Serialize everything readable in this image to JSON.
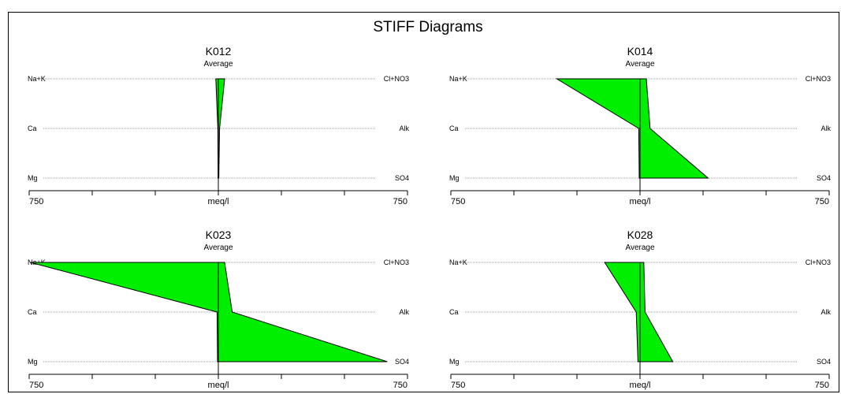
{
  "chart_data": {
    "type": "stiff",
    "title": "STIFF Diagrams",
    "unit_label": "meq/l",
    "axis_range": [
      750,
      750
    ],
    "axis_tick_labels": {
      "left": "750",
      "right": "750"
    },
    "fill_color": "#00ee00",
    "line_color": "#000000",
    "cation_labels": [
      "Na+K",
      "Ca",
      "Mg"
    ],
    "anion_labels": [
      "Cl+NO3",
      "Alk",
      "SO4"
    ],
    "diagrams": [
      {
        "name": "K012",
        "subtitle": "Average",
        "cations": {
          "Na+K": 10,
          "Ca": 2,
          "Mg": 1
        },
        "anions": {
          "Cl+NO3": 25,
          "Alk": 5,
          "SO4": 2
        }
      },
      {
        "name": "K014",
        "subtitle": "Average",
        "cations": {
          "Na+K": 330,
          "Ca": 5,
          "Mg": 3
        },
        "anions": {
          "Cl+NO3": 25,
          "Alk": 40,
          "SO4": 270
        }
      },
      {
        "name": "K023",
        "subtitle": "Average",
        "cations": {
          "Na+K": 745,
          "Ca": 5,
          "Mg": 3
        },
        "anions": {
          "Cl+NO3": 25,
          "Alk": 55,
          "SO4": 670
        }
      },
      {
        "name": "K028",
        "subtitle": "Average",
        "cations": {
          "Na+K": 140,
          "Ca": 15,
          "Mg": 8
        },
        "anions": {
          "Cl+NO3": 15,
          "Alk": 20,
          "SO4": 130
        }
      }
    ]
  }
}
